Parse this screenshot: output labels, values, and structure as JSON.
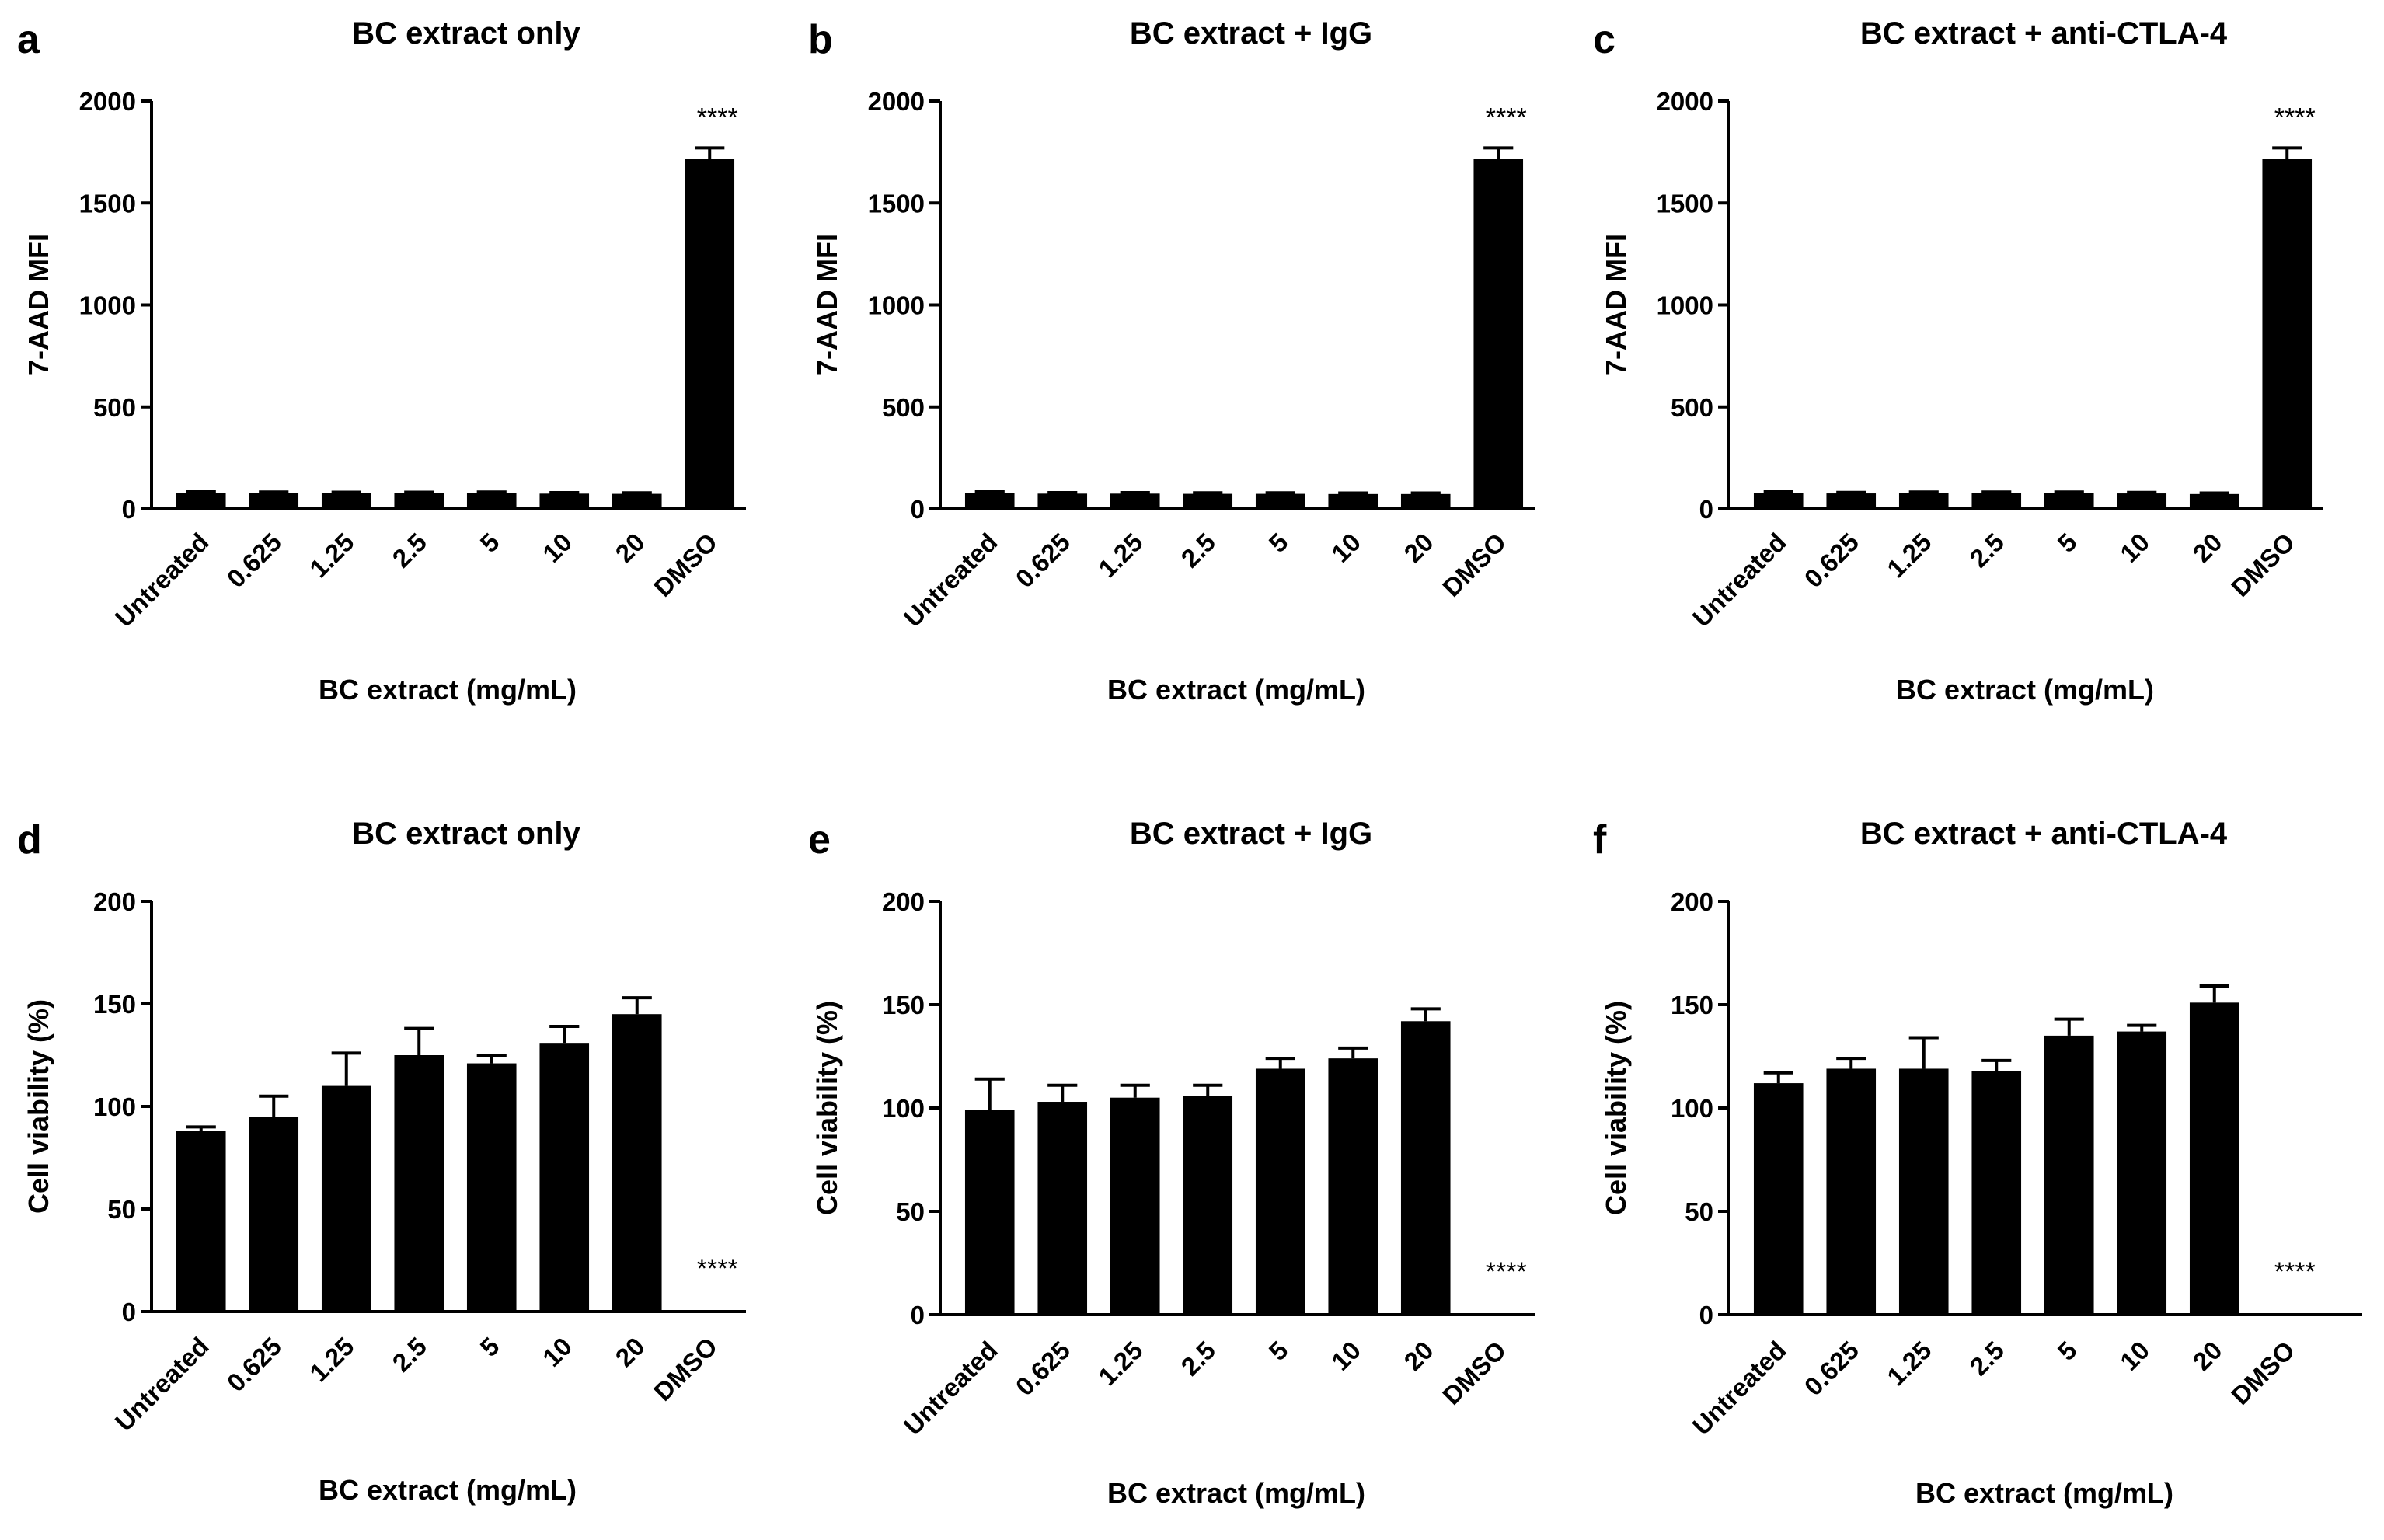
{
  "chart_data": [
    {
      "panel": "a",
      "type": "bar",
      "title": "BC extract only",
      "xlabel": "BC extract (mg/mL)",
      "ylabel": "7-AAD MFI",
      "ylim": [
        0,
        2000
      ],
      "yticks": [
        0,
        500,
        1000,
        1500,
        2000
      ],
      "categories": [
        "Untreated",
        "0.625",
        "1.25",
        "2.5",
        "5",
        "10",
        "20",
        "DMSO"
      ],
      "values": [
        80,
        78,
        77,
        77,
        78,
        75,
        74,
        1715
      ],
      "errors": [
        6,
        5,
        5,
        5,
        5,
        5,
        5,
        55
      ],
      "significance": [
        {
          "index": 7,
          "label": "****"
        }
      ]
    },
    {
      "panel": "b",
      "type": "bar",
      "title": "BC extract + IgG",
      "xlabel": "BC extract (mg/mL)",
      "ylabel": "7-AAD MFI",
      "ylim": [
        0,
        2000
      ],
      "yticks": [
        0,
        500,
        1000,
        1500,
        2000
      ],
      "categories": [
        "Untreated",
        "0.625",
        "1.25",
        "2.5",
        "5",
        "10",
        "20",
        "DMSO"
      ],
      "values": [
        80,
        75,
        75,
        74,
        74,
        73,
        73,
        1715
      ],
      "errors": [
        6,
        5,
        5,
        5,
        5,
        5,
        5,
        55
      ],
      "significance": [
        {
          "index": 7,
          "label": "****"
        }
      ]
    },
    {
      "panel": "c",
      "type": "bar",
      "title": "BC extract + anti-CTLA-4",
      "xlabel": "BC extract (mg/mL)",
      "ylabel": "7-AAD MFI",
      "ylim": [
        0,
        2000
      ],
      "yticks": [
        0,
        500,
        1000,
        1500,
        2000
      ],
      "categories": [
        "Untreated",
        "0.625",
        "1.25",
        "2.5",
        "5",
        "10",
        "20",
        "DMSO"
      ],
      "values": [
        80,
        76,
        78,
        78,
        78,
        76,
        73,
        1715
      ],
      "errors": [
        6,
        5,
        5,
        5,
        5,
        5,
        5,
        55
      ],
      "significance": [
        {
          "index": 7,
          "label": "****"
        }
      ]
    },
    {
      "panel": "d",
      "type": "bar",
      "title": "BC extract only",
      "xlabel": "BC extract (mg/mL)",
      "ylabel": "Cell viability (%)",
      "ylim": [
        0,
        200
      ],
      "yticks": [
        0,
        50,
        100,
        150,
        200
      ],
      "categories": [
        "Untreated",
        "0.625",
        "1.25",
        "2.5",
        "5",
        "10",
        "20",
        "DMSO"
      ],
      "values": [
        88,
        95,
        110,
        125,
        121,
        131,
        145,
        0
      ],
      "errors": [
        2,
        10,
        16,
        13,
        4,
        8,
        8,
        0
      ],
      "significance": [
        {
          "index": 7,
          "label": "****"
        }
      ]
    },
    {
      "panel": "e",
      "type": "bar",
      "title": "BC extract + IgG",
      "xlabel": "BC extract (mg/mL)",
      "ylabel": "Cell viability (%)",
      "ylim": [
        0,
        200
      ],
      "yticks": [
        0,
        50,
        100,
        150,
        200
      ],
      "categories": [
        "Untreated",
        "0.625",
        "1.25",
        "2.5",
        "5",
        "10",
        "20",
        "DMSO"
      ],
      "values": [
        99,
        103,
        105,
        106,
        119,
        124,
        142,
        0
      ],
      "errors": [
        15,
        8,
        6,
        5,
        5,
        5,
        6,
        0
      ],
      "significance": [
        {
          "index": 7,
          "label": "****"
        }
      ]
    },
    {
      "panel": "f",
      "type": "bar",
      "title": "BC extract + anti-CTLA-4",
      "xlabel": "BC extract (mg/mL)",
      "ylabel": "Cell viability (%)",
      "ylim": [
        0,
        200
      ],
      "yticks": [
        0,
        50,
        100,
        150,
        200
      ],
      "categories": [
        "Untreated",
        "0.625",
        "1.25",
        "2.5",
        "5",
        "10",
        "20",
        "DMSO"
      ],
      "values": [
        112,
        119,
        119,
        118,
        135,
        137,
        151,
        0
      ],
      "errors": [
        5,
        5,
        15,
        5,
        8,
        3,
        8,
        0
      ],
      "significance": [
        {
          "index": 7,
          "label": "****"
        }
      ]
    }
  ]
}
